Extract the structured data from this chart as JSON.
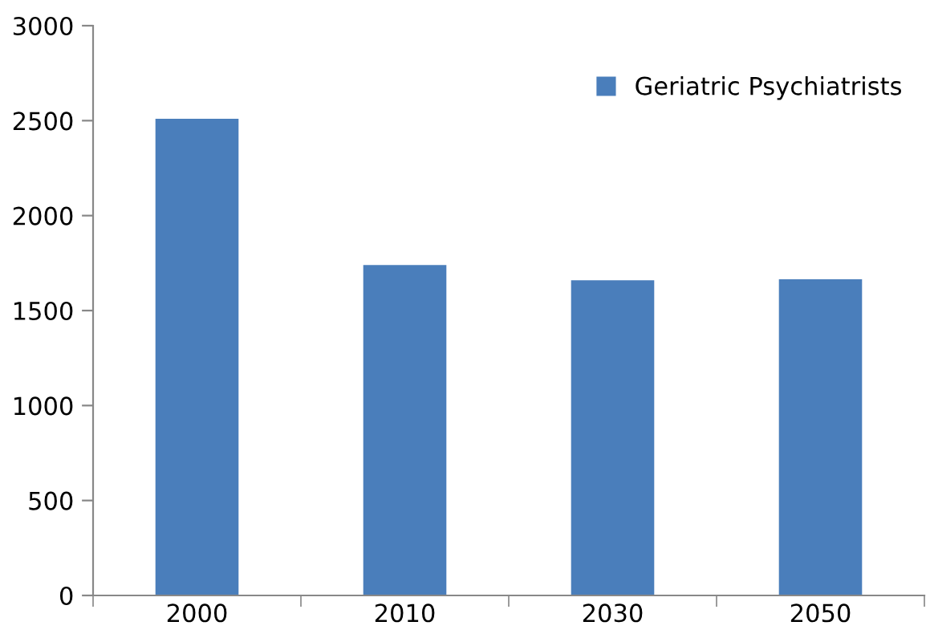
{
  "chart_data": {
    "type": "bar",
    "categories": [
      "2000",
      "2010",
      "2030",
      "2050"
    ],
    "series": [
      {
        "name": "Geriatric Psychiatrists",
        "color": "#4a7ebb",
        "values": [
          2510,
          1740,
          1660,
          1665
        ]
      }
    ],
    "ylim": [
      0,
      3000
    ],
    "yticks": [
      0,
      500,
      1000,
      1500,
      2000,
      2500,
      3000
    ],
    "grid": false,
    "legend": "top right"
  }
}
